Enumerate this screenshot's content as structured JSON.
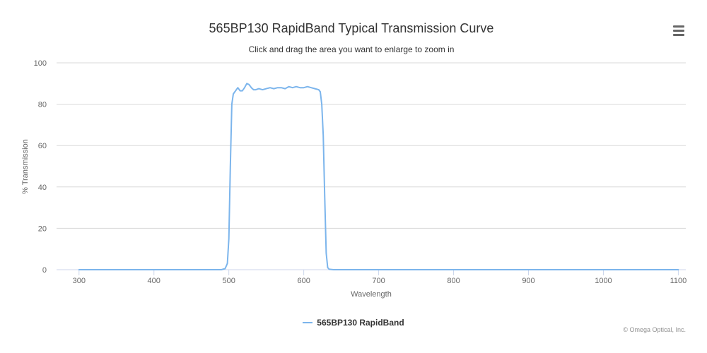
{
  "header": {
    "title": "565BP130 RapidBand Typical Transmission Curve",
    "subtitle": "Click and drag the area you want to enlarge to zoom in"
  },
  "menu": {
    "icon": "hamburger-menu-icon"
  },
  "colors": {
    "series": "#7cb5ec",
    "grid": "#d8d8d8",
    "axis": "#ccd6eb",
    "text": "#333333",
    "label": "#666666"
  },
  "credits": "© Omega Optical, Inc.",
  "chart_data": {
    "type": "line",
    "title": "565BP130 RapidBand Typical Transmission Curve",
    "subtitle": "Click and drag the area you want to enlarge to zoom in",
    "xlabel": "Wavelength",
    "ylabel": "% Transmission",
    "xlim": [
      270,
      1110
    ],
    "ylim": [
      0,
      100
    ],
    "xticks": [
      300,
      400,
      500,
      600,
      700,
      800,
      900,
      1000,
      1100
    ],
    "yticks": [
      0,
      20,
      40,
      60,
      80,
      100
    ],
    "grid": true,
    "legend": "bottom-center",
    "series": [
      {
        "name": "565BP130 RapidBand",
        "color": "#7cb5ec",
        "x": [
          300,
          400,
          490,
          495,
          498,
          500,
          502,
          504,
          506,
          508,
          510,
          512,
          515,
          518,
          521,
          524,
          527,
          530,
          533,
          536,
          540,
          545,
          550,
          555,
          560,
          565,
          570,
          575,
          580,
          585,
          590,
          595,
          600,
          605,
          610,
          615,
          620,
          622,
          624,
          626,
          628,
          630,
          632,
          634,
          640,
          700,
          800,
          900,
          1000,
          1100
        ],
        "y": [
          0,
          0,
          0,
          0.5,
          3,
          15,
          50,
          80,
          85,
          86,
          87,
          88,
          86.5,
          86.5,
          88,
          90,
          89.5,
          88,
          87,
          87,
          87.5,
          87,
          87.5,
          88,
          87.5,
          88,
          88,
          87.5,
          88.5,
          88,
          88.5,
          88,
          88,
          88.5,
          88,
          87.5,
          87,
          86,
          80,
          65,
          35,
          8,
          1,
          0.2,
          0,
          0,
          0,
          0,
          0,
          0
        ]
      }
    ]
  }
}
